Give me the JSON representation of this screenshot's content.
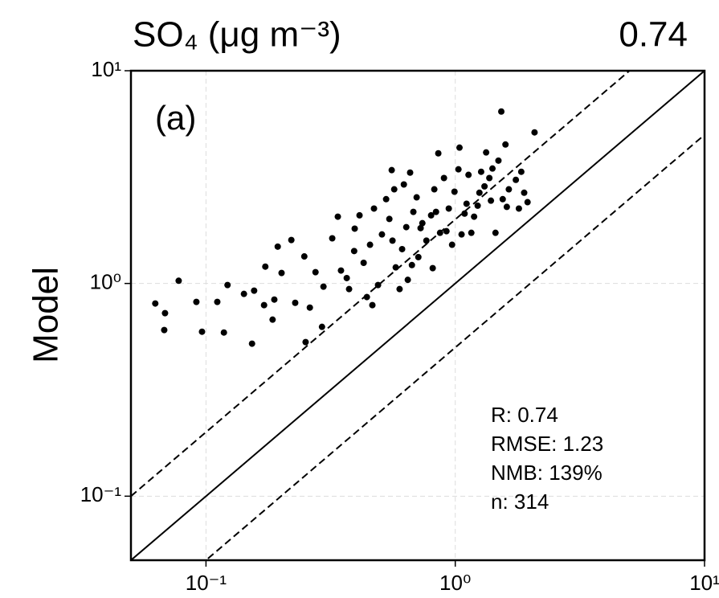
{
  "chart_data": {
    "type": "scatter",
    "title": "SO₄ (μg m⁻³)",
    "title_right": "0.74",
    "ylabel": "Model",
    "panel_label": "(a)",
    "annotations": [
      "R: 0.74",
      "RMSE: 1.23",
      "NMB: 139%",
      "n: 314"
    ],
    "xscale": "log",
    "yscale": "log",
    "grid": true,
    "color": "#000000",
    "xlim": [
      0.05,
      10
    ],
    "ylim": [
      0.05,
      10
    ],
    "xticks": [
      {
        "value": 0.1,
        "label": "10⁻¹"
      },
      {
        "value": 1,
        "label": "10⁰"
      },
      {
        "value": 10,
        "label": "10¹"
      }
    ],
    "yticks": [
      {
        "value": 0.1,
        "label": "10⁻¹"
      },
      {
        "value": 1,
        "label": "10⁰"
      },
      {
        "value": 10,
        "label": "10¹"
      }
    ],
    "reference_lines": [
      {
        "slope": 1,
        "style": "solid"
      },
      {
        "slope": 2,
        "style": "dashed"
      },
      {
        "slope": 0.5,
        "style": "dashed"
      }
    ],
    "x": [
      0.0626,
      0.0685,
      0.068,
      0.0777,
      0.0915,
      0.0964,
      0.111,
      0.118,
      0.122,
      0.142,
      0.153,
      0.156,
      0.173,
      0.185,
      0.194,
      0.201,
      0.22,
      0.228,
      0.248,
      0.251,
      0.261,
      0.275,
      0.292,
      0.296,
      0.321,
      0.338,
      0.348,
      0.375,
      0.393,
      0.413,
      0.429,
      0.442,
      0.465,
      0.472,
      0.49,
      0.508,
      0.528,
      0.544,
      0.556,
      0.569,
      0.577,
      0.598,
      0.612,
      0.622,
      0.645,
      0.659,
      0.679,
      0.7,
      0.711,
      0.738,
      0.766,
      0.8,
      0.812,
      0.824,
      0.855,
      0.869,
      0.901,
      0.942,
      0.971,
      0.993,
      1.03,
      1.04,
      1.06,
      1.09,
      1.13,
      1.16,
      1.19,
      1.23,
      1.27,
      1.31,
      1.33,
      1.37,
      1.41,
      1.45,
      1.49,
      1.53,
      1.55,
      1.59,
      1.64,
      1.75,
      1.8,
      1.84,
      1.89,
      1.95,
      2.08,
      0.171,
      0.188,
      0.367,
      0.395,
      0.455,
      0.56,
      0.636,
      0.726,
      0.837,
      0.922,
      1.11,
      1.25,
      1.39,
      1.61,
      0.67
    ],
    "values": [
      0.805,
      0.725,
      0.604,
      1.03,
      0.819,
      0.593,
      0.819,
      0.588,
      0.983,
      0.893,
      0.521,
      0.925,
      1.2,
      0.676,
      1.49,
      1.12,
      1.6,
      0.811,
      1.34,
      0.53,
      0.77,
      1.13,
      0.625,
      0.966,
      1.63,
      2.06,
      1.15,
      0.941,
      1.42,
      2.09,
      1.25,
      0.863,
      0.791,
      2.25,
      0.983,
      1.7,
      2.49,
      2.01,
      3.41,
      2.77,
      1.19,
      0.941,
      1.45,
      2.92,
      1.04,
      3.32,
      2.17,
      2.54,
      1.33,
      1.92,
      1.59,
      2.09,
      1.18,
      2.77,
      4.09,
      1.73,
      3.13,
      2.25,
      1.52,
      2.7,
      3.44,
      4.35,
      1.7,
      2.13,
      3.24,
      1.73,
      2.06,
      2.32,
      3.35,
      2.86,
      4.13,
      3.13,
      3.47,
      1.73,
      3.78,
      6.43,
      2.49,
      4.5,
      2.77,
      3.07,
      2.25,
      3.35,
      2.67,
      2.41,
      5.13,
      0.791,
      0.84,
      1.06,
      1.81,
      1.52,
      1.59,
      1.84,
      1.82,
      2.17,
      1.76,
      2.37,
      2.67,
      2.45,
      2.29,
      1.22
    ]
  }
}
